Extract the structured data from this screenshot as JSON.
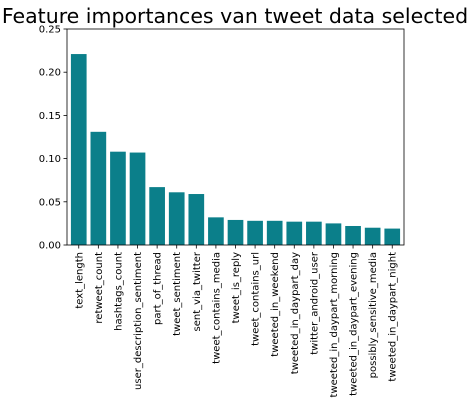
{
  "chart_data": {
    "type": "bar",
    "title": "Feature importances van tweet data selected",
    "xlabel": "",
    "ylabel": "",
    "ylim": [
      0,
      0.25
    ],
    "yticks": [
      0.0,
      0.05,
      0.1,
      0.15,
      0.2,
      0.25
    ],
    "ytick_labels": [
      "0.00",
      "0.05",
      "0.10",
      "0.15",
      "0.20",
      "0.25"
    ],
    "grid": false,
    "bar_color": "#0b7f8a",
    "categories": [
      "text_length",
      "retweet_count",
      "hashtags_count",
      "user_description_sentiment",
      "part_of_thread",
      "tweet_sentiment",
      "sent_via_twitter",
      "tweet_contains_media",
      "tweet_is_reply",
      "tweet_contains_url",
      "tweeted_in_weekend",
      "tweeted_in_daypart_day",
      "twitter_android_user",
      "tweeted_in_daypart_morning",
      "tweeted_in_daypart_evening",
      "possibly_sensitive_media",
      "tweeted_in_daypart_night"
    ],
    "values": [
      0.221,
      0.131,
      0.108,
      0.107,
      0.067,
      0.061,
      0.059,
      0.032,
      0.029,
      0.028,
      0.028,
      0.027,
      0.027,
      0.025,
      0.022,
      0.02,
      0.019
    ]
  }
}
